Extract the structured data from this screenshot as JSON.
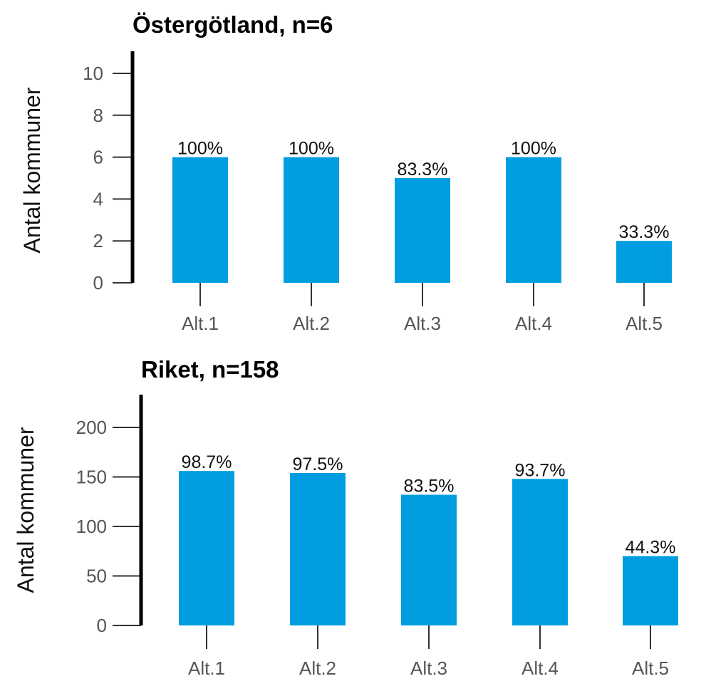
{
  "chart_data": [
    {
      "type": "bar",
      "title": "Östergötland, n=6",
      "ylabel": "Antal kommuner",
      "xlabel": "",
      "categories": [
        "Alt.1",
        "Alt.2",
        "Alt.3",
        "Alt.4",
        "Alt.5"
      ],
      "values": [
        6,
        6,
        5,
        6,
        2
      ],
      "data_labels": [
        "100%",
        "100%",
        "83.3%",
        "100%",
        "33.3%"
      ],
      "ylim": [
        0,
        10
      ],
      "yticks": [
        "0",
        "2",
        "4",
        "6",
        "8",
        "10"
      ],
      "bar_color": "#009ee0",
      "grid": false,
      "legend": "none"
    },
    {
      "type": "bar",
      "title": "Riket, n=158",
      "ylabel": "Antal kommuner",
      "xlabel": "",
      "categories": [
        "Alt.1",
        "Alt.2",
        "Alt.3",
        "Alt.4",
        "Alt.5"
      ],
      "values": [
        156,
        154,
        132,
        148,
        70
      ],
      "data_labels": [
        "98.7%",
        "97.5%",
        "83.5%",
        "93.7%",
        "44.3%"
      ],
      "ylim": [
        0,
        200
      ],
      "yticks": [
        "0",
        "50",
        "100",
        "150",
        "200"
      ],
      "bar_color": "#009ee0",
      "grid": false,
      "legend": "none"
    }
  ]
}
